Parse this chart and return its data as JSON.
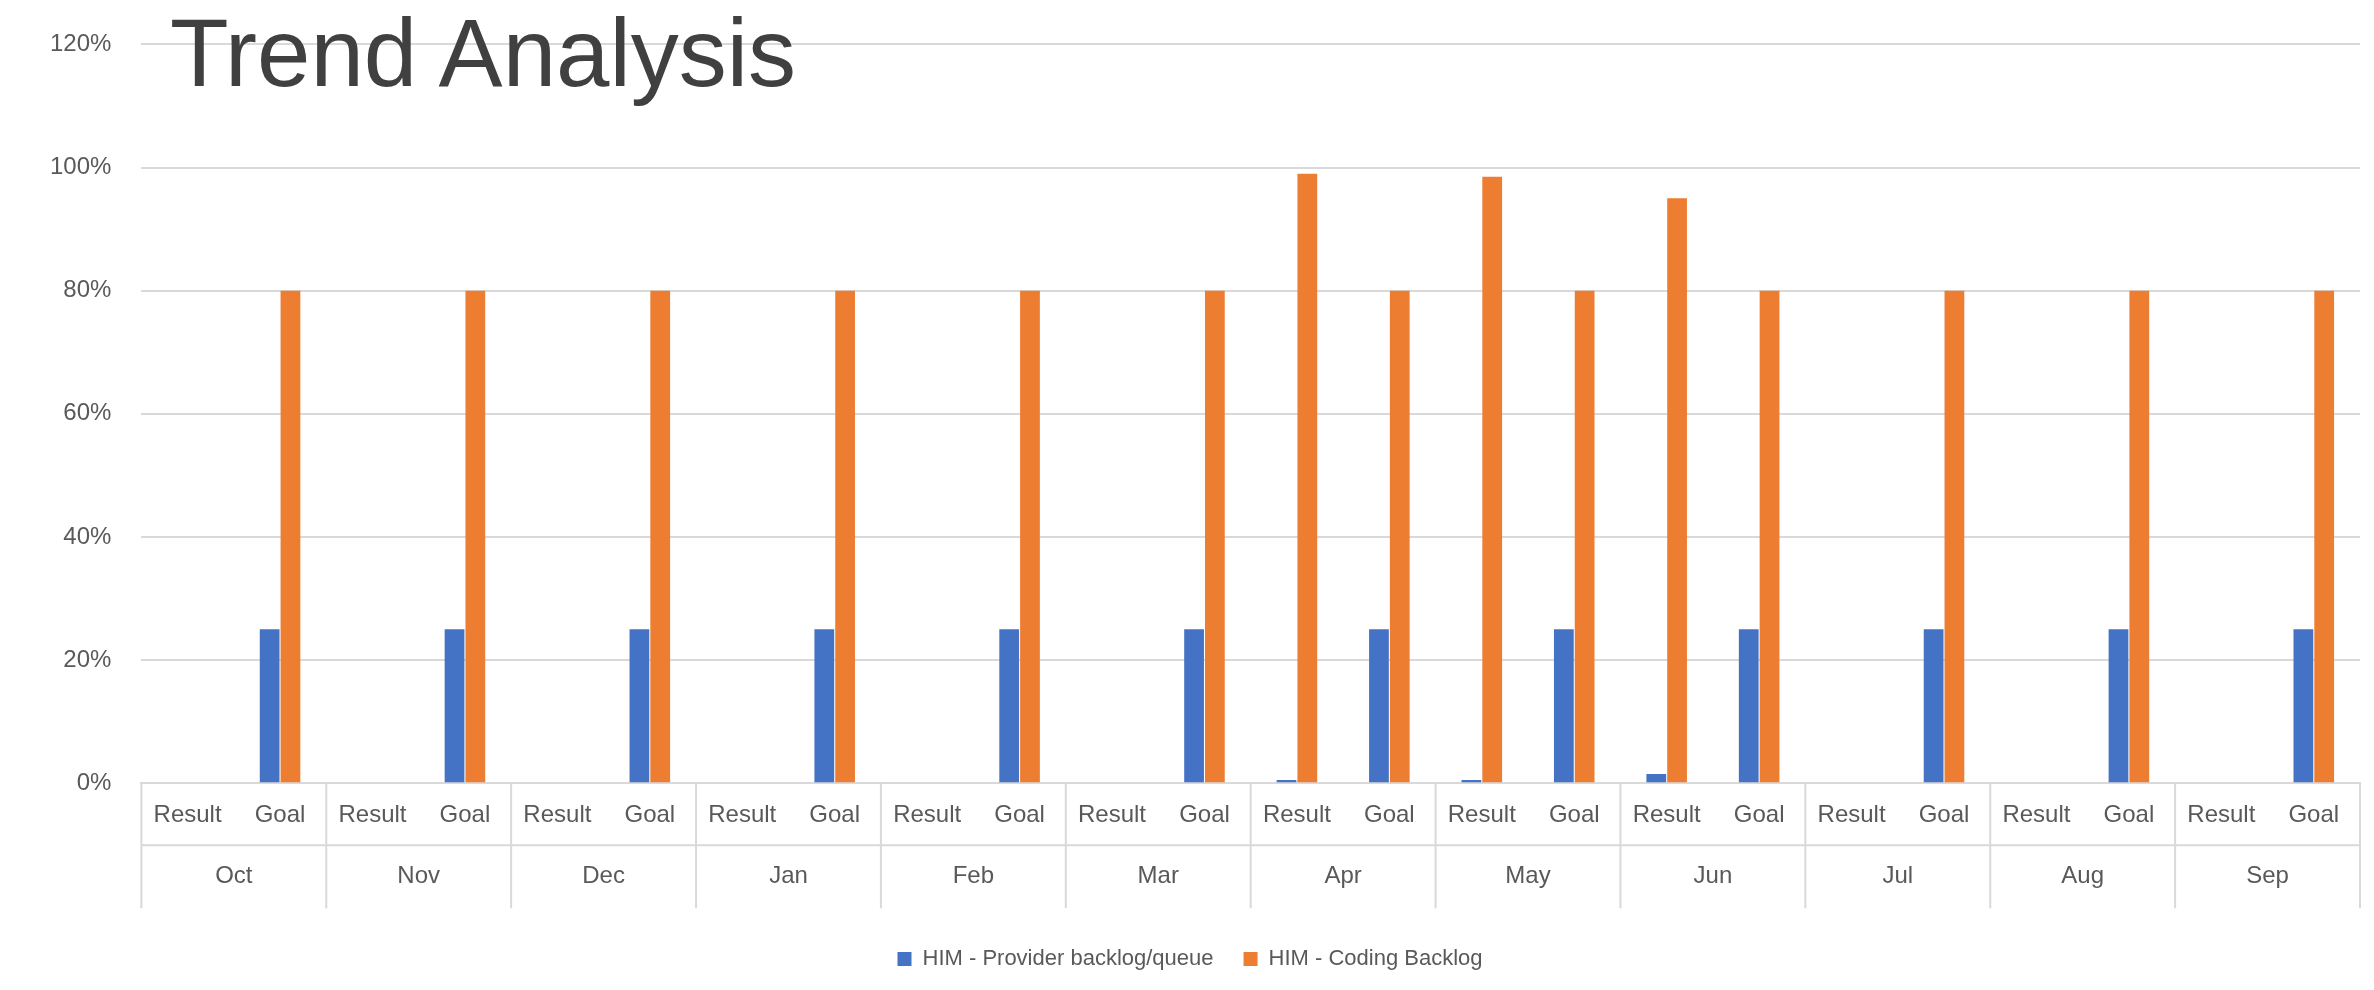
{
  "chart_data": {
    "type": "bar",
    "title": "Trend Analysis",
    "categories": [
      "Result",
      "Goal",
      "Result",
      "Goal",
      "Result",
      "Goal",
      "Result",
      "Goal",
      "Result",
      "Goal",
      "Result",
      "Goal",
      "Result",
      "Goal",
      "Result",
      "Goal",
      "Result",
      "Goal",
      "Result",
      "Goal",
      "Result",
      "Goal",
      "Result",
      "Goal"
    ],
    "annotations": [
      "Oct",
      "Nov",
      "Dec",
      "Jan",
      "Feb",
      "Mar",
      "Apr",
      "May",
      "Jun",
      "Jul",
      "Aug",
      "Sep"
    ],
    "series": [
      {
        "name": "HIM - Provider backlog/queue",
        "color": "#4472c4",
        "values": [
          null,
          25,
          null,
          25,
          null,
          25,
          null,
          25,
          null,
          25,
          null,
          25,
          0.5,
          25,
          0.5,
          25,
          1.5,
          25,
          null,
          25,
          null,
          25,
          null,
          25
        ]
      },
      {
        "name": "HIM - Coding Backlog",
        "color": "#ed7d31",
        "values": [
          null,
          80,
          null,
          80,
          null,
          80,
          null,
          80,
          null,
          80,
          null,
          80,
          99,
          80,
          98.5,
          80,
          95,
          80,
          null,
          80,
          null,
          80,
          null,
          80
        ]
      }
    ],
    "ylim": [
      0,
      120
    ],
    "yticks": [
      {
        "value": 0,
        "label": "0%"
      },
      {
        "value": 20,
        "label": "20%"
      },
      {
        "value": 40,
        "label": "40%"
      },
      {
        "value": 60,
        "label": "60%"
      },
      {
        "value": 80,
        "label": "80%"
      },
      {
        "value": 100,
        "label": "100%"
      },
      {
        "value": 120,
        "label": "120%"
      }
    ],
    "grid": "y",
    "legend": "bottom"
  }
}
